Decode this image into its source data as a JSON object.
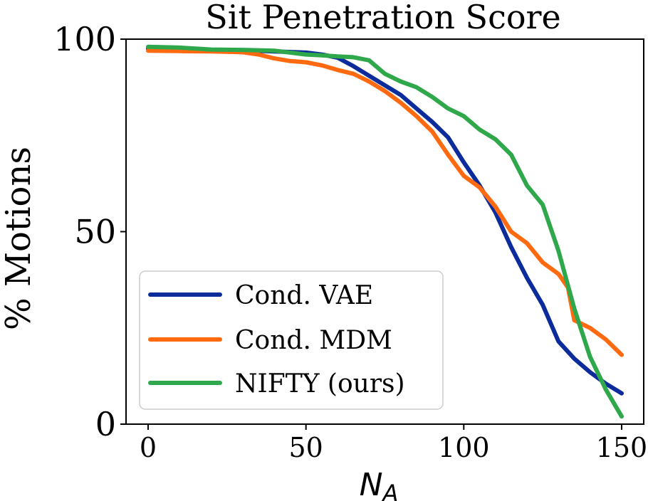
{
  "chart_data": {
    "type": "line",
    "title": "Sit Penetration Score",
    "xlabel": "N",
    "xlabel_subscript": "A",
    "ylabel": "% Motions",
    "xlim": [
      -7,
      157
    ],
    "ylim": [
      0,
      100
    ],
    "xticks": [
      0,
      50,
      100,
      150
    ],
    "yticks": [
      0,
      50,
      100
    ],
    "legend_position": "lower-left",
    "series": [
      {
        "name": "Cond. VAE",
        "color": "#0c2c9c",
        "x": [
          0,
          10,
          20,
          30,
          40,
          50,
          55,
          60,
          65,
          70,
          75,
          80,
          85,
          90,
          95,
          100,
          105,
          110,
          115,
          120,
          125,
          130,
          135,
          140,
          145,
          150
        ],
        "y": [
          97.5,
          97.3,
          97.2,
          97.1,
          96.8,
          96.5,
          96.0,
          95.2,
          93.0,
          90.5,
          88.0,
          85.5,
          82.0,
          78.5,
          74.5,
          68.0,
          62.0,
          55.0,
          46.0,
          38.0,
          31.0,
          21.5,
          17.0,
          13.5,
          10.5,
          8.0
        ]
      },
      {
        "name": "Cond. MDM",
        "color": "#ff6a10",
        "x": [
          0,
          10,
          20,
          30,
          35,
          40,
          45,
          50,
          55,
          60,
          65,
          70,
          75,
          80,
          85,
          90,
          95,
          100,
          105,
          110,
          115,
          120,
          125,
          130,
          133,
          135,
          140,
          145,
          150
        ],
        "y": [
          97.0,
          96.9,
          96.8,
          96.6,
          96.0,
          95.0,
          94.3,
          94.0,
          93.2,
          92.0,
          91.0,
          89.0,
          86.5,
          83.5,
          80.0,
          76.0,
          70.0,
          64.5,
          61.5,
          56.5,
          50.0,
          47.0,
          42.0,
          39.0,
          35.5,
          27.0,
          25.0,
          22.0,
          18.0
        ]
      },
      {
        "name": "NIFTY (ours)",
        "color": "#2ea84a",
        "x": [
          0,
          10,
          20,
          30,
          40,
          50,
          55,
          60,
          65,
          70,
          75,
          80,
          85,
          90,
          95,
          100,
          105,
          110,
          115,
          120,
          125,
          130,
          135,
          140,
          145,
          150
        ],
        "y": [
          98.0,
          97.8,
          97.3,
          97.2,
          97.0,
          96.0,
          95.8,
          95.5,
          95.3,
          94.5,
          91.0,
          89.0,
          87.5,
          85.0,
          82.0,
          80.0,
          76.5,
          74.0,
          70.0,
          62.0,
          57.0,
          45.0,
          30.0,
          17.5,
          9.0,
          2.0
        ]
      }
    ]
  }
}
